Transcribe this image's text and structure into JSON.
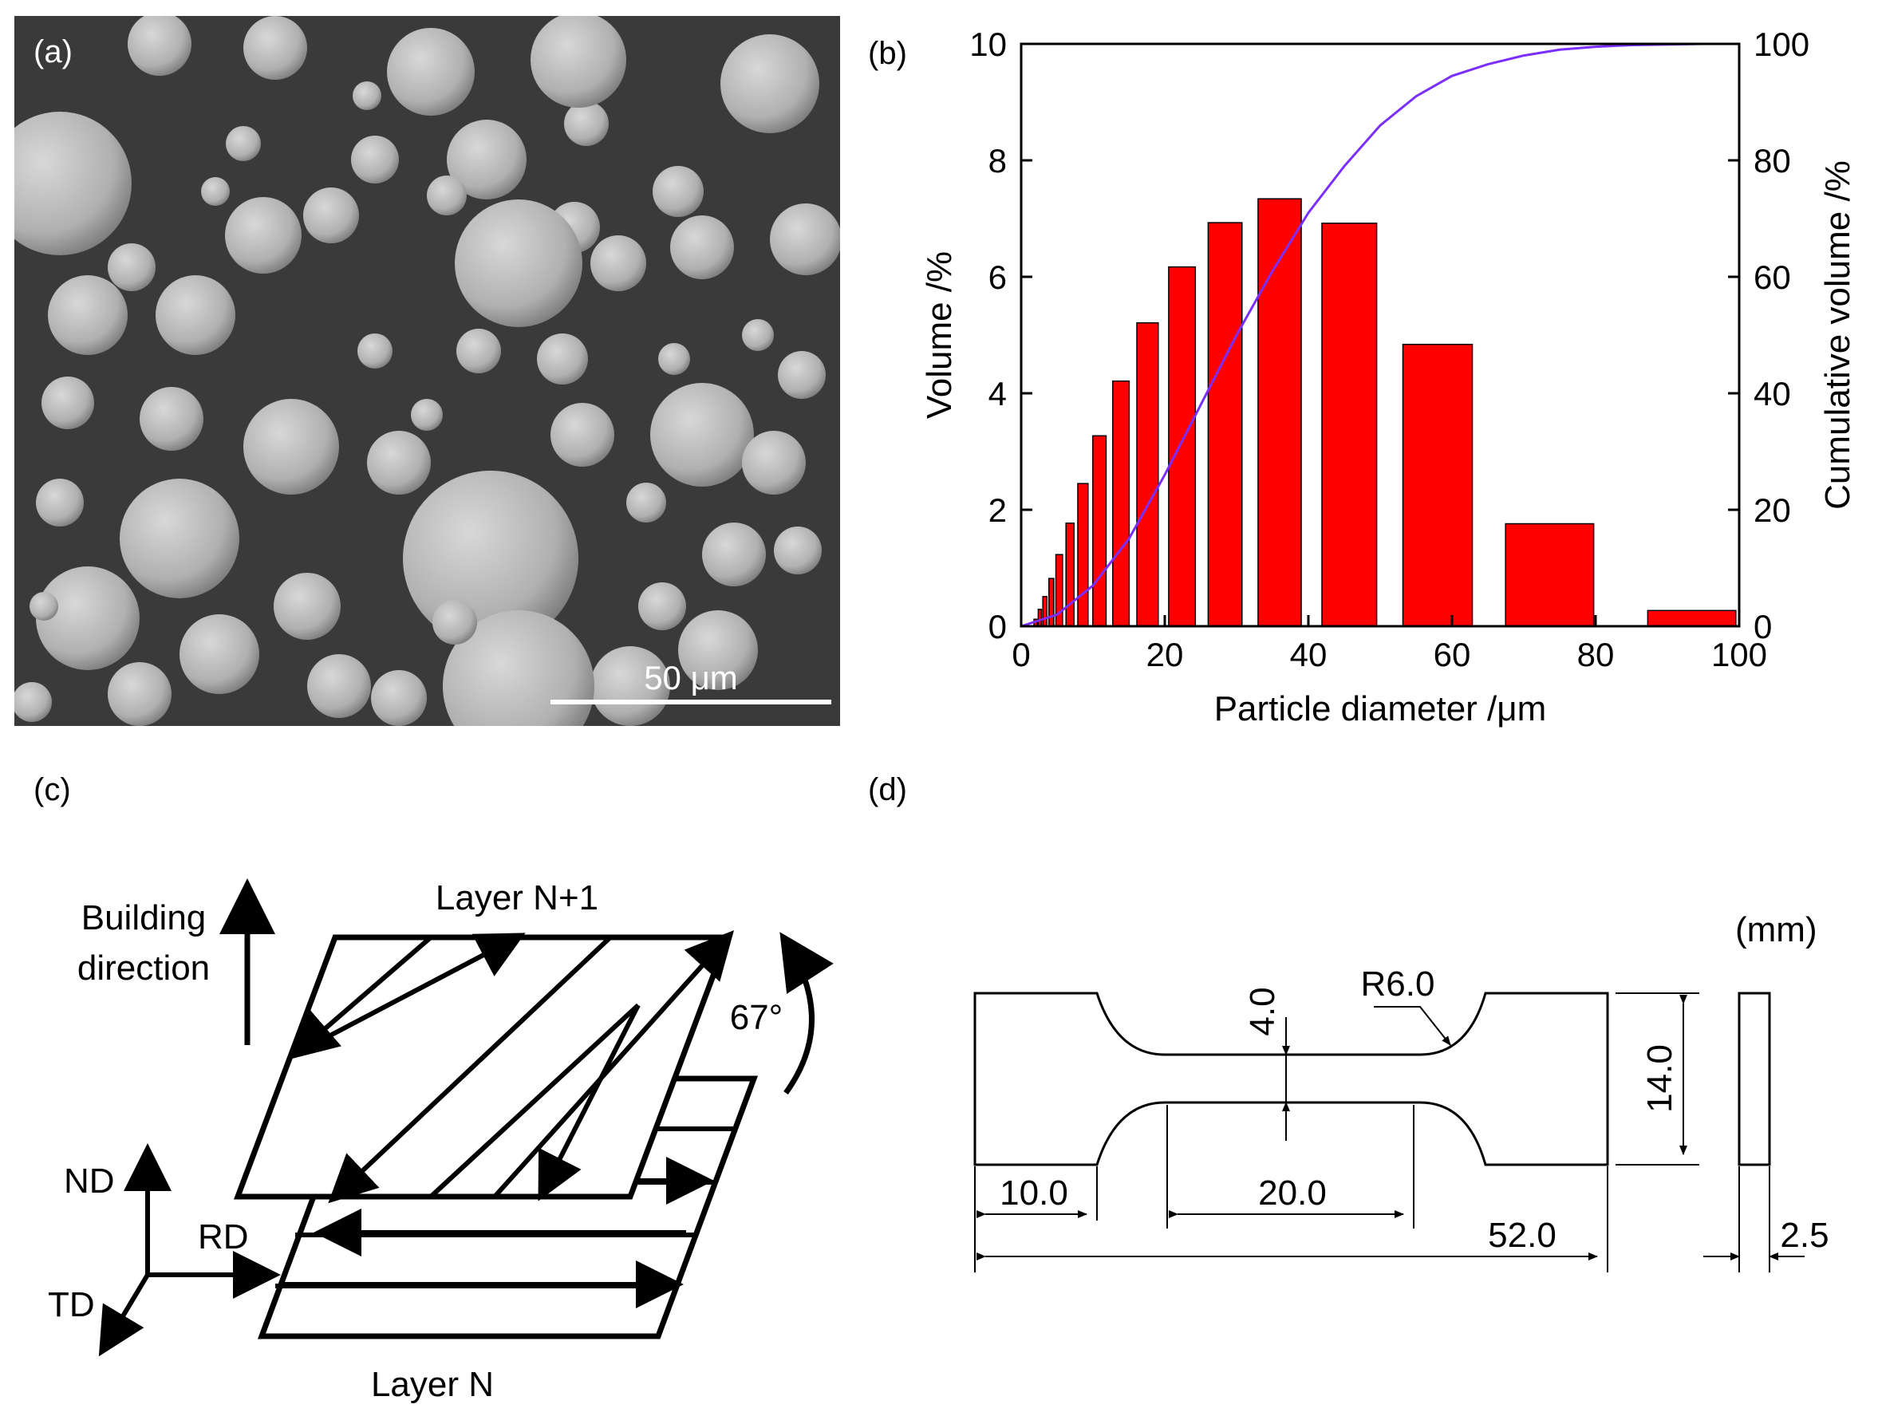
{
  "panels": {
    "a": {
      "label": "(a)",
      "scale_bar_text": "50 μm",
      "background_color": "#3a3a3a"
    },
    "b": {
      "label": "(b)"
    },
    "c": {
      "label": "(c)",
      "building_direction_line1": "Building",
      "building_direction_line2": "direction",
      "layer_top": "Layer N+1",
      "layer_bottom": "Layer N",
      "angle": "67°",
      "axis_nd": "ND",
      "axis_rd": "RD",
      "axis_td": "TD"
    },
    "d": {
      "label": "(d)",
      "unit": "(mm)",
      "dim_radius": "R6.0",
      "dim_gauge_width": "4.0",
      "dim_total_width": "14.0",
      "dim_grip_length": "10.0",
      "dim_gauge_length": "20.0",
      "dim_total_length": "52.0",
      "dim_thickness": "2.5"
    }
  },
  "chart_data": {
    "type": "bar",
    "xlabel": "Particle diameter /μm",
    "ylabel": "Volume /%",
    "y2label": "Cumulative volume /%",
    "xlim": [
      0,
      100
    ],
    "ylim": [
      0,
      10
    ],
    "y2lim": [
      0,
      100
    ],
    "xticks": [
      "0",
      "20",
      "40",
      "60",
      "80",
      "100"
    ],
    "yticks": [
      "0",
      "2",
      "4",
      "6",
      "8",
      "10"
    ],
    "y2ticks": [
      "0",
      "20",
      "40",
      "60",
      "80",
      "100"
    ],
    "bar_color": "#ff0000",
    "line_color": "#7b2fff",
    "bars": {
      "x": [
        2,
        2.6,
        3.3,
        4.2,
        5.3,
        6.8,
        8.6,
        10.9,
        13.9,
        17.6,
        22.4,
        28.4,
        36,
        45.7,
        58,
        73.6,
        93.4
      ],
      "values": [
        0.12,
        0.29,
        0.51,
        0.82,
        1.23,
        1.77,
        2.45,
        3.27,
        4.21,
        5.21,
        6.17,
        6.93,
        7.34,
        6.92,
        4.84,
        1.76,
        0.27
      ]
    },
    "cumulative": {
      "x": [
        0,
        5,
        10,
        15,
        20,
        25,
        30,
        35,
        40,
        45,
        50,
        55,
        60,
        65,
        70,
        75,
        80,
        85,
        90,
        95,
        100
      ],
      "values": [
        0,
        2,
        7,
        15,
        26,
        38,
        50,
        61,
        71,
        79,
        86,
        91,
        94.5,
        96.5,
        98,
        99,
        99.5,
        99.8,
        99.9,
        100,
        100
      ]
    }
  }
}
